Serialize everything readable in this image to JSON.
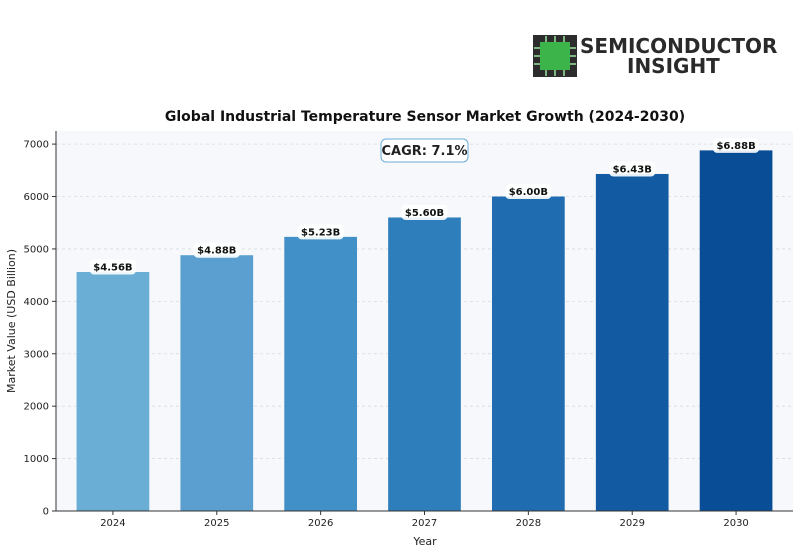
{
  "logo": {
    "line1": "SEMICONDUCTOR",
    "line2": "INSIGHT",
    "chip_color": "#3cb44a"
  },
  "annotation": {
    "cagr": "CAGR: 7.1%"
  },
  "colors": [
    "#6aaed6",
    "#5a9fd0",
    "#4290c8",
    "#2f7ebc",
    "#1f6cb0",
    "#125aa2",
    "#084d96"
  ],
  "chart_data": {
    "type": "bar",
    "title": "Global Industrial Temperature Sensor Market Growth (2024-2030)",
    "xlabel": "Year",
    "ylabel": "Market Value (USD Billion)",
    "categories": [
      "2024",
      "2025",
      "2026",
      "2027",
      "2028",
      "2029",
      "2030"
    ],
    "values": [
      4560,
      4880,
      5230,
      5600,
      6000,
      6430,
      6880
    ],
    "data_labels": [
      "$4.56B",
      "$4.88B",
      "$5.23B",
      "$5.60B",
      "$6.00B",
      "$6.43B",
      "$6.88B"
    ],
    "ylim": [
      0,
      7250
    ],
    "yticks": [
      "0",
      "1000",
      "2000",
      "3000",
      "4000",
      "5000",
      "6000",
      "7000"
    ],
    "grid": "horizontal",
    "legend": "none"
  }
}
